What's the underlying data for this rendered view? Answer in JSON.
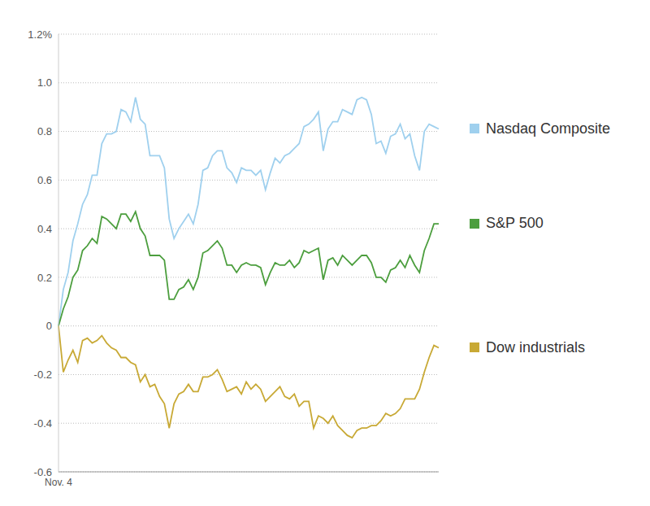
{
  "chart_data": {
    "type": "line",
    "categories": [
      "Nov. 4",
      null,
      null,
      null,
      null,
      null,
      null,
      null,
      null,
      null,
      null,
      null,
      null,
      null,
      null,
      null,
      null,
      null,
      null,
      null,
      null,
      null,
      null,
      null,
      null,
      null,
      null,
      null,
      null,
      null,
      null,
      null,
      null,
      null,
      null,
      null,
      null,
      null,
      null,
      null,
      null,
      null,
      null,
      null,
      null,
      null,
      null,
      null,
      null,
      null,
      null,
      null,
      null,
      null,
      null,
      null,
      null,
      null,
      null,
      null,
      null,
      null,
      null,
      null,
      null,
      null,
      null,
      null,
      null,
      null,
      null,
      null,
      null,
      null,
      null,
      null,
      null,
      null,
      null,
      null
    ],
    "series": [
      {
        "name": "Nasdaq Composite",
        "color": "#9fd0ee",
        "values": [
          0,
          0.15,
          0.22,
          0.35,
          0.42,
          0.5,
          0.54,
          0.62,
          0.62,
          0.75,
          0.79,
          0.79,
          0.8,
          0.89,
          0.88,
          0.84,
          0.94,
          0.85,
          0.83,
          0.7,
          0.7,
          0.7,
          0.65,
          0.44,
          0.36,
          0.4,
          0.43,
          0.46,
          0.42,
          0.5,
          0.64,
          0.65,
          0.7,
          0.72,
          0.72,
          0.65,
          0.63,
          0.59,
          0.65,
          0.64,
          0.64,
          0.62,
          0.64,
          0.56,
          0.63,
          0.69,
          0.67,
          0.7,
          0.71,
          0.73,
          0.75,
          0.82,
          0.83,
          0.85,
          0.88,
          0.72,
          0.81,
          0.84,
          0.84,
          0.89,
          0.88,
          0.87,
          0.93,
          0.94,
          0.93,
          0.87,
          0.75,
          0.76,
          0.71,
          0.78,
          0.79,
          0.83,
          0.77,
          0.79,
          0.7,
          0.64,
          0.8,
          0.83,
          0.82,
          0.81
        ]
      },
      {
        "name": "S&P 500",
        "color": "#4c9e3e",
        "values": [
          0,
          0.07,
          0.12,
          0.2,
          0.23,
          0.31,
          0.33,
          0.36,
          0.34,
          0.45,
          0.44,
          0.42,
          0.4,
          0.46,
          0.46,
          0.43,
          0.47,
          0.4,
          0.37,
          0.29,
          0.29,
          0.29,
          0.27,
          0.11,
          0.11,
          0.15,
          0.16,
          0.19,
          0.15,
          0.2,
          0.3,
          0.31,
          0.33,
          0.35,
          0.32,
          0.25,
          0.25,
          0.22,
          0.25,
          0.26,
          0.25,
          0.25,
          0.24,
          0.17,
          0.22,
          0.26,
          0.25,
          0.25,
          0.27,
          0.24,
          0.26,
          0.31,
          0.3,
          0.31,
          0.32,
          0.19,
          0.27,
          0.28,
          0.25,
          0.29,
          0.27,
          0.25,
          0.27,
          0.29,
          0.29,
          0.26,
          0.2,
          0.2,
          0.18,
          0.23,
          0.24,
          0.27,
          0.24,
          0.29,
          0.25,
          0.22,
          0.31,
          0.36,
          0.42,
          0.42
        ]
      },
      {
        "name": "Dow industrials",
        "color": "#c8a935",
        "values": [
          0,
          -0.19,
          -0.14,
          -0.1,
          -0.15,
          -0.06,
          -0.05,
          -0.07,
          -0.06,
          -0.04,
          -0.07,
          -0.09,
          -0.1,
          -0.13,
          -0.13,
          -0.15,
          -0.16,
          -0.23,
          -0.2,
          -0.25,
          -0.24,
          -0.29,
          -0.32,
          -0.42,
          -0.32,
          -0.28,
          -0.27,
          -0.24,
          -0.27,
          -0.27,
          -0.21,
          -0.21,
          -0.2,
          -0.18,
          -0.22,
          -0.27,
          -0.26,
          -0.25,
          -0.28,
          -0.23,
          -0.26,
          -0.24,
          -0.26,
          -0.31,
          -0.29,
          -0.27,
          -0.25,
          -0.29,
          -0.3,
          -0.28,
          -0.33,
          -0.31,
          -0.31,
          -0.42,
          -0.37,
          -0.38,
          -0.4,
          -0.37,
          -0.41,
          -0.43,
          -0.45,
          -0.46,
          -0.43,
          -0.42,
          -0.42,
          -0.41,
          -0.41,
          -0.39,
          -0.36,
          -0.37,
          -0.36,
          -0.34,
          -0.3,
          -0.3,
          -0.3,
          -0.26,
          -0.19,
          -0.13,
          -0.08,
          -0.09
        ]
      }
    ],
    "ylim": [
      -0.6,
      1.2
    ],
    "yticks": [
      {
        "value": 1.2,
        "label": "1.2%"
      },
      {
        "value": 1,
        "label": "1.0"
      },
      0.8,
      0.6,
      0.4,
      0.2,
      0,
      -0.2,
      -0.4,
      -0.6
    ],
    "grid": true,
    "legend": "right"
  }
}
